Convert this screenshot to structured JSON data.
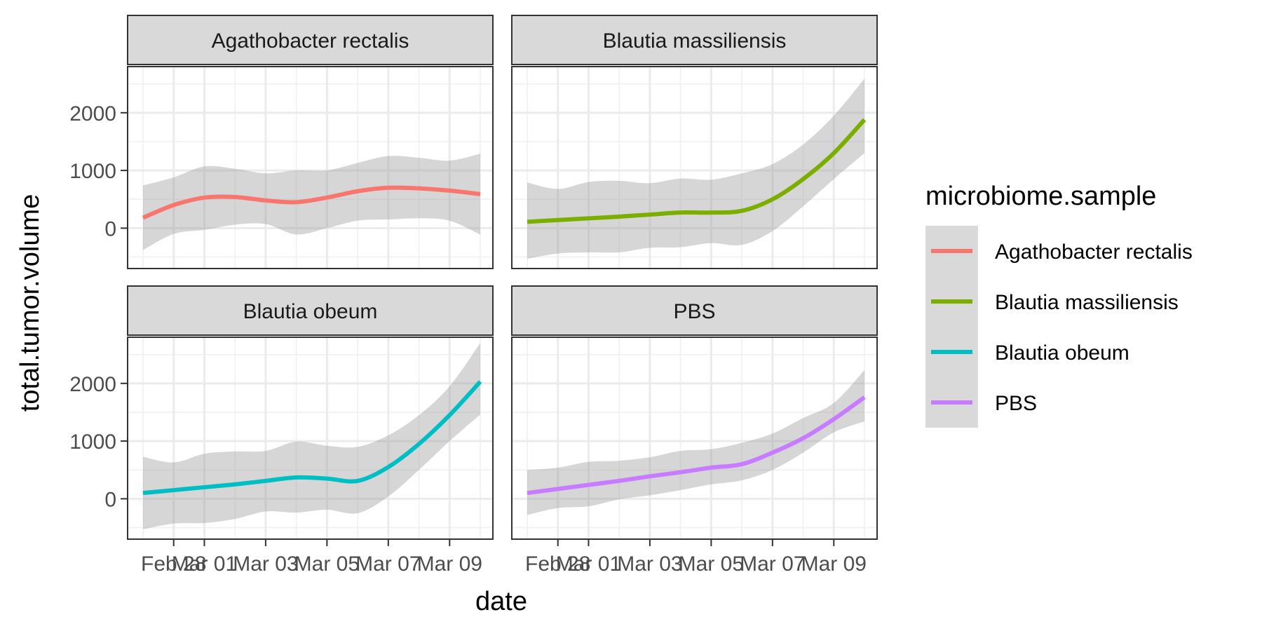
{
  "chart_data": {
    "type": "line",
    "subtype": "faceted smoothed lines with confidence bands",
    "xlabel": "date",
    "ylabel": "total.tumor.volume",
    "x_ticks": [
      "Feb 28",
      "Mar 01",
      "Mar 03",
      "Mar 05",
      "Mar 07",
      "Mar 09"
    ],
    "x_range": [
      "2023-02-27",
      "2023-03-10"
    ],
    "y_ticks": [
      0,
      1000,
      2000
    ],
    "ylim": [
      -700,
      2800
    ],
    "grid": true,
    "theme": "bw",
    "legend": {
      "title": "microbiome.sample",
      "position": "right"
    },
    "series": [
      {
        "name": "Agathobacter rectalis",
        "color": "#F8766D",
        "x": [
          "2023-02-27",
          "2023-02-28",
          "2023-03-01",
          "2023-03-02",
          "2023-03-03",
          "2023-03-04",
          "2023-03-05",
          "2023-03-06",
          "2023-03-07",
          "2023-03-08",
          "2023-03-09",
          "2023-03-10"
        ],
        "y": [
          180,
          400,
          530,
          540,
          480,
          450,
          530,
          640,
          700,
          690,
          650,
          590
        ],
        "lower": [
          -380,
          -100,
          -30,
          60,
          70,
          -110,
          0,
          130,
          150,
          170,
          130,
          -110
        ],
        "upper": [
          740,
          880,
          1070,
          1030,
          950,
          1000,
          1000,
          1130,
          1250,
          1220,
          1170,
          1290
        ]
      },
      {
        "name": "Blautia massiliensis",
        "color": "#7CAE00",
        "x": [
          "2023-02-27",
          "2023-02-28",
          "2023-03-01",
          "2023-03-02",
          "2023-03-03",
          "2023-03-04",
          "2023-03-05",
          "2023-03-06",
          "2023-03-07",
          "2023-03-08",
          "2023-03-09",
          "2023-03-10"
        ],
        "y": [
          110,
          140,
          170,
          200,
          235,
          270,
          270,
          300,
          500,
          850,
          1300,
          1880
        ],
        "lower": [
          -530,
          -440,
          -420,
          -420,
          -340,
          -330,
          -260,
          -290,
          -50,
          380,
          850,
          1300
        ],
        "upper": [
          790,
          680,
          800,
          820,
          780,
          860,
          840,
          950,
          1110,
          1450,
          1950,
          2590
        ]
      },
      {
        "name": "Blautia obeum",
        "color": "#00BFC4",
        "x": [
          "2023-02-27",
          "2023-02-28",
          "2023-03-01",
          "2023-03-02",
          "2023-03-03",
          "2023-03-04",
          "2023-03-05",
          "2023-03-06",
          "2023-03-07",
          "2023-03-08",
          "2023-03-09",
          "2023-03-10"
        ],
        "y": [
          100,
          150,
          200,
          250,
          310,
          370,
          350,
          310,
          550,
          950,
          1450,
          2030
        ],
        "lower": [
          -530,
          -430,
          -420,
          -350,
          -220,
          -240,
          -190,
          -250,
          40,
          500,
          1000,
          1460
        ],
        "upper": [
          730,
          630,
          780,
          820,
          830,
          990,
          920,
          900,
          1100,
          1450,
          1950,
          2700
        ]
      },
      {
        "name": "PBS",
        "color": "#C77CFF",
        "x": [
          "2023-02-27",
          "2023-02-28",
          "2023-03-01",
          "2023-03-02",
          "2023-03-03",
          "2023-03-04",
          "2023-03-05",
          "2023-03-06",
          "2023-03-07",
          "2023-03-08",
          "2023-03-09",
          "2023-03-10"
        ],
        "y": [
          100,
          170,
          240,
          310,
          390,
          460,
          540,
          600,
          800,
          1050,
          1380,
          1760
        ],
        "lower": [
          -280,
          -160,
          -130,
          -10,
          60,
          150,
          250,
          320,
          500,
          800,
          1150,
          1340
        ],
        "upper": [
          500,
          540,
          640,
          660,
          720,
          830,
          860,
          970,
          1130,
          1400,
          1660,
          2230
        ]
      }
    ],
    "facets": [
      {
        "strip": "Agathobacter rectalis",
        "series": 0
      },
      {
        "strip": "Blautia massiliensis",
        "series": 1
      },
      {
        "strip": "Blautia obeum",
        "series": 2
      },
      {
        "strip": "PBS",
        "series": 3
      }
    ]
  }
}
